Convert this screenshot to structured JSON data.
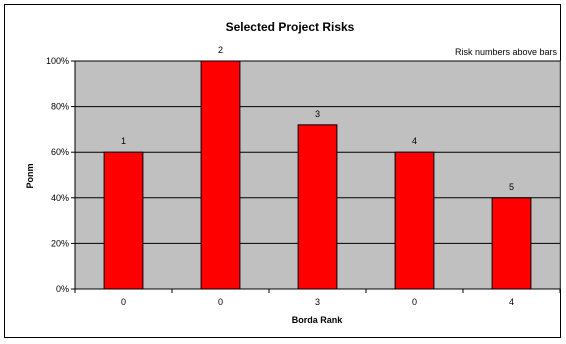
{
  "chart_data": {
    "type": "bar",
    "title": "Selected Project Risks",
    "annotation": "Risk numbers above bars",
    "xlabel": "Borda Rank",
    "ylabel": "Ponm",
    "categories": [
      "0",
      "0",
      "3",
      "0",
      "4"
    ],
    "values": [
      60,
      100,
      72,
      60,
      40
    ],
    "data_labels": [
      "1",
      "2",
      "3",
      "4",
      "5"
    ],
    "ylim": [
      0,
      100
    ],
    "y_ticks": [
      0,
      20,
      40,
      60,
      80,
      100
    ],
    "y_tick_labels": [
      "0%",
      "20%",
      "40%",
      "60%",
      "80%",
      "100%"
    ],
    "grid": true,
    "legend": "none",
    "colors": {
      "bar": "#ff0000",
      "plot_background": "#c0c0c0",
      "gridline": "#000000"
    }
  }
}
